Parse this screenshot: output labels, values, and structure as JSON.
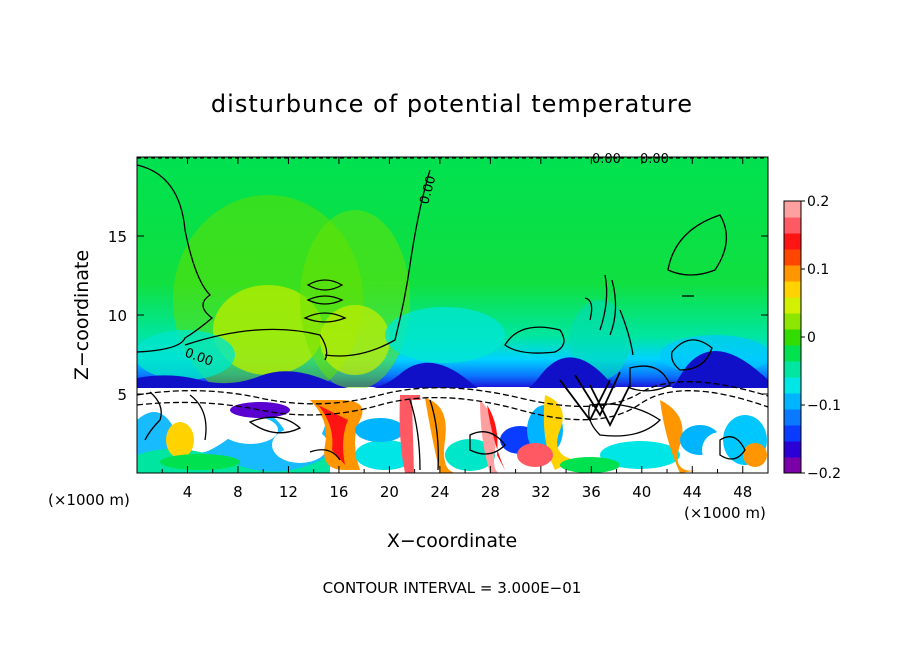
{
  "chart_data": {
    "type": "heatmap",
    "title": "disturbunce of potential temperature",
    "xlabel": "X−coordinate",
    "ylabel": "Z−coordinate",
    "x_unit": "(×1000 m)",
    "y_unit": "(×1000 m)",
    "xlim": [
      0,
      50
    ],
    "ylim": [
      0,
      20
    ],
    "x_ticks": [
      4,
      8,
      12,
      16,
      20,
      24,
      28,
      32,
      36,
      40,
      44,
      48
    ],
    "y_ticks": [
      5,
      10,
      15
    ],
    "colorbar": {
      "range": [
        -0.2,
        0.2
      ],
      "tick_values": [
        0.2,
        0.1,
        0,
        -0.1,
        -0.2
      ],
      "tick_labels": [
        "0.2",
        "0.1",
        "0",
        "−0.1",
        "−0.2"
      ],
      "colors": [
        "#7a00a8",
        "#2a00d6",
        "#0a3cff",
        "#0a78ff",
        "#00b4ff",
        "#00e6e6",
        "#00e6a0",
        "#00e150",
        "#32dc00",
        "#8ce600",
        "#d2f000",
        "#ffd200",
        "#ff9600",
        "#ff4600",
        "#ff1414",
        "#ff5a64",
        "#ffa0a0"
      ]
    },
    "contour_labels": [
      "0.00",
      "0.00",
      "0.00",
      "0.00"
    ],
    "contour_interval_text": "CONTOUR INTERVAL = 3.000E−01"
  }
}
